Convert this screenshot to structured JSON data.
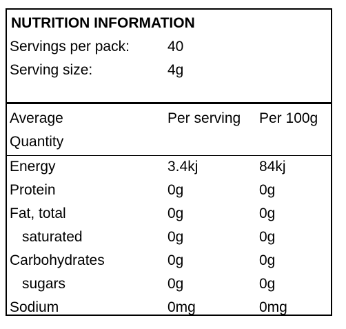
{
  "title": "NUTRITION INFORMATION",
  "servings": {
    "per_pack_label": "Servings per pack:",
    "per_pack_value": "40",
    "size_label": "Serving size:",
    "size_value": "4g"
  },
  "header": {
    "average": "Average",
    "quantity": "Quantity",
    "per_serving": "Per serving",
    "per_100g": "Per 100g"
  },
  "rows": [
    {
      "name": "Energy",
      "per_serving": "3.4kj",
      "per_100g": "84kj"
    },
    {
      "name": "Protein",
      "per_serving": "0g",
      "per_100g": "0g"
    },
    {
      "name": "Fat, total",
      "per_serving": "0g",
      "per_100g": "0g"
    },
    {
      "name": "saturated",
      "per_serving": "0g",
      "per_100g": "0g"
    },
    {
      "name": "Carbohydrates",
      "per_serving": "0g",
      "per_100g": "0g"
    },
    {
      "name": "sugars",
      "per_serving": "0g",
      "per_100g": "0g"
    },
    {
      "name": "Sodium",
      "per_serving": "0mg",
      "per_100g": "0mg"
    }
  ]
}
